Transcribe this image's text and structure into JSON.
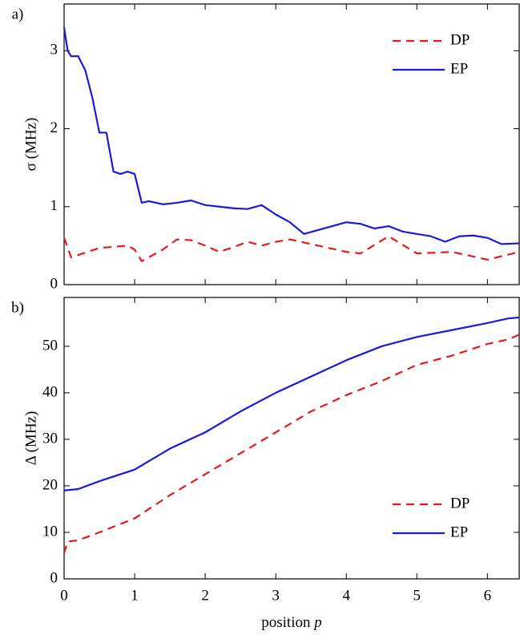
{
  "chart_data": [
    {
      "type": "line",
      "panel_label": "a)",
      "ylabel": "σ (MHz)",
      "xlim": [
        0,
        6.45
      ],
      "xticks": [
        0,
        1,
        2,
        3,
        4,
        5,
        6
      ],
      "show_xtick_labels": false,
      "ylim": [
        0,
        3.6
      ],
      "yticks": [
        0,
        1,
        2,
        3
      ],
      "legend": "upper right",
      "series": [
        {
          "name": "DP",
          "color": "#e8191c",
          "dashed": true,
          "x": [
            0,
            0.1,
            0.5,
            0.9,
            1.0,
            1.1,
            1.4,
            1.6,
            1.8,
            2.0,
            2.2,
            2.4,
            2.6,
            2.8,
            3.0,
            3.2,
            3.5,
            4.0,
            4.2,
            4.6,
            5.0,
            5.5,
            6.0,
            6.45
          ],
          "values": [
            0.6,
            0.35,
            0.47,
            0.5,
            0.45,
            0.3,
            0.45,
            0.58,
            0.57,
            0.5,
            0.42,
            0.48,
            0.55,
            0.5,
            0.55,
            0.58,
            0.52,
            0.42,
            0.4,
            0.62,
            0.4,
            0.42,
            0.32,
            0.42
          ]
        },
        {
          "name": "EP",
          "color": "#1a1adb",
          "dashed": false,
          "x": [
            0,
            0.05,
            0.1,
            0.2,
            0.3,
            0.4,
            0.5,
            0.6,
            0.7,
            0.8,
            0.9,
            1.0,
            1.1,
            1.2,
            1.4,
            1.6,
            1.8,
            2.0,
            2.2,
            2.4,
            2.6,
            2.8,
            3.0,
            3.2,
            3.4,
            3.6,
            3.8,
            4.0,
            4.2,
            4.4,
            4.6,
            4.8,
            5.0,
            5.2,
            5.4,
            5.6,
            5.8,
            6.0,
            6.2,
            6.45
          ],
          "values": [
            3.3,
            3.0,
            2.93,
            2.93,
            2.75,
            2.4,
            1.95,
            1.95,
            1.45,
            1.42,
            1.45,
            1.42,
            1.05,
            1.07,
            1.03,
            1.05,
            1.08,
            1.02,
            1.0,
            0.98,
            0.97,
            1.02,
            0.9,
            0.8,
            0.65,
            0.7,
            0.75,
            0.8,
            0.78,
            0.72,
            0.75,
            0.68,
            0.65,
            0.62,
            0.55,
            0.62,
            0.63,
            0.6,
            0.52,
            0.53
          ]
        }
      ]
    },
    {
      "type": "line",
      "panel_label": "b)",
      "ylabel": "Δ (MHz)",
      "xlabel": "position",
      "xlabel_var": "p",
      "xlim": [
        0,
        6.45
      ],
      "xticks": [
        0,
        1,
        2,
        3,
        4,
        5,
        6
      ],
      "show_xtick_labels": true,
      "ylim": [
        0,
        60.5
      ],
      "yticks": [
        0,
        10,
        20,
        30,
        40,
        50
      ],
      "legend": "lower right",
      "series": [
        {
          "name": "DP",
          "color": "#e8191c",
          "dashed": true,
          "x": [
            0,
            0.05,
            0.2,
            0.5,
            1,
            1.5,
            2,
            2.5,
            3,
            3.5,
            4,
            4.5,
            5,
            5.5,
            6,
            6.3,
            6.45
          ],
          "values": [
            5.5,
            8,
            8.3,
            10,
            13,
            18,
            22.5,
            27,
            31.5,
            36,
            39.5,
            42.5,
            46,
            48,
            50.5,
            51.5,
            52.5
          ]
        },
        {
          "name": "EP",
          "color": "#1a1adb",
          "dashed": false,
          "x": [
            0,
            0.2,
            0.5,
            1,
            1.5,
            2,
            2.5,
            3,
            3.5,
            4,
            4.5,
            5,
            5.5,
            6,
            6.3,
            6.45
          ],
          "values": [
            19,
            19.3,
            21,
            23.5,
            28,
            31.5,
            36,
            40,
            43.5,
            47,
            50,
            52,
            53.5,
            55,
            56,
            56.2
          ]
        }
      ]
    }
  ]
}
